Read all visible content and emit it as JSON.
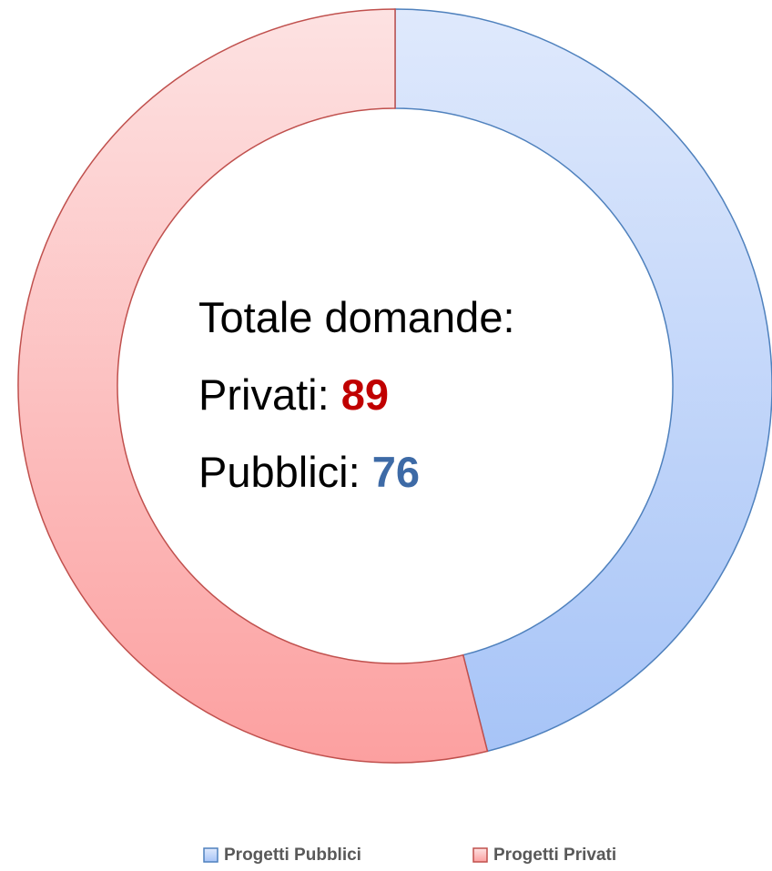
{
  "chart_data": {
    "type": "donut",
    "categories": [
      "Progetti Pubblici",
      "Progetti Privati"
    ],
    "values": [
      76,
      89
    ],
    "colors": [
      "#4f81bd",
      "#c0504d"
    ],
    "annotations": [
      "Totale domande:",
      "Privati:",
      "Pubblici:"
    ]
  }
}
